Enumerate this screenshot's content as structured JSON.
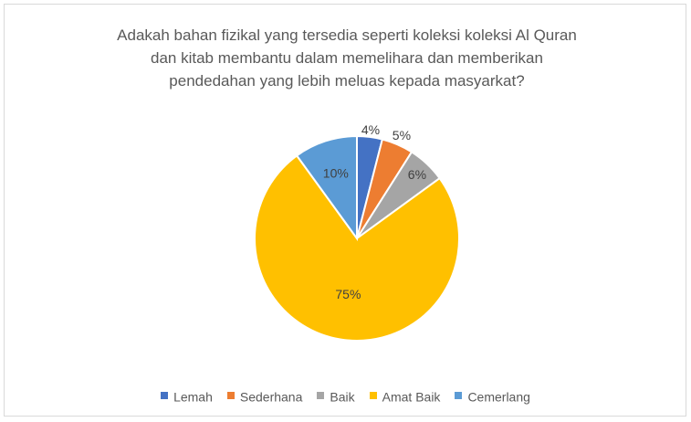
{
  "chart_data": {
    "type": "pie",
    "title_lines": [
      "Adakah bahan fizikal yang tersedia seperti koleksi koleksi Al Quran",
      "dan kitab membantu dalam memelihara dan memberikan",
      "pendedahan yang lebih meluas kepada masyarkat?"
    ],
    "categories": [
      "Lemah",
      "Sederhana",
      "Baik",
      "Amat Baik",
      "Cemerlang"
    ],
    "values": [
      4,
      5,
      6,
      75,
      10
    ],
    "data_labels": [
      "4%",
      "5%",
      "6%",
      "75%",
      "10%"
    ],
    "colors": [
      "#4472C4",
      "#ED7D31",
      "#A5A5A5",
      "#FFC000",
      "#5B9BD5"
    ],
    "legend_position": "bottom"
  }
}
